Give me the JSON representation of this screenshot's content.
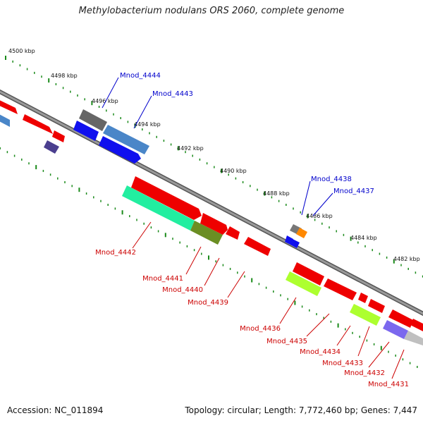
{
  "title": "Methylobacterium nodulans ORS 2060, complete genome",
  "footer": {
    "accession": "Accession: NC_011894",
    "summary": "Topology: circular; Length: 7,772,460 bp; Genes: 7,447"
  },
  "scale_labels": [
    "4500 kbp",
    "4498 kbp",
    "4496 kbp",
    "4494 kbp",
    "4492 kbp",
    "4490 kbp",
    "4488 kbp",
    "4486 kbp",
    "4484 kbp",
    "4482 kbp"
  ],
  "genes_forward": [
    {
      "id": "Mnod_4444",
      "color": "#1010ee"
    },
    {
      "id": "Mnod_4443",
      "color": "#4a86c8"
    },
    {
      "id": "Mnod_4438",
      "color": "#1010ee"
    },
    {
      "id": "Mnod_4437",
      "color": "#ff8800"
    }
  ],
  "genes_reverse": [
    {
      "id": "Mnod_4442",
      "color": "#22eea0"
    },
    {
      "id": "Mnod_4441",
      "color": "#6b8e23"
    },
    {
      "id": "Mnod_4440",
      "color": "#ee0000"
    },
    {
      "id": "Mnod_4439",
      "color": "#ee0000"
    },
    {
      "id": "Mnod_4436",
      "color": "#adff2f"
    },
    {
      "id": "Mnod_4435",
      "color": "#ee0000"
    },
    {
      "id": "Mnod_4434",
      "color": "#ee0000"
    },
    {
      "id": "Mnod_4433",
      "color": "#adff2f"
    },
    {
      "id": "Mnod_4432",
      "color": "#7b68ee"
    },
    {
      "id": "Mnod_4431",
      "color": "#c0c0c0"
    }
  ],
  "colors": {
    "backbone": "#888888",
    "scale_dots": "#1a8a1a",
    "forward_label": "#0000cc",
    "reverse_label": "#cc0000"
  }
}
